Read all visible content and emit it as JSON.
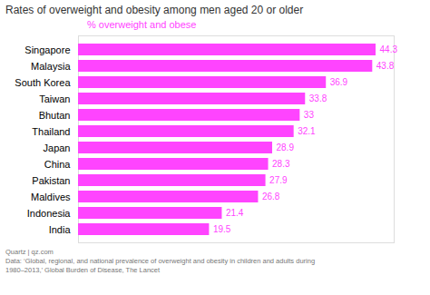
{
  "chart_data": {
    "type": "bar",
    "orientation": "horizontal",
    "title": "Rates of overweight and obesity among men aged 20 or older",
    "subtitle": "% overweight and obese",
    "categories": [
      "India",
      "Indonesia",
      "Maldives",
      "Pakistan",
      "China",
      "Japan",
      "Thailand",
      "Bhutan",
      "Taiwan",
      "South Korea",
      "Malaysia",
      "Singapore"
    ],
    "values": [
      19.5,
      21.4,
      26.8,
      27.9,
      28.3,
      28.9,
      32.1,
      33.0,
      33.8,
      36.9,
      43.8,
      44.3
    ],
    "value_labels": [
      "19.5",
      "21.4",
      "26.8",
      "27.9",
      "28.3",
      "28.9",
      "32.1",
      "33",
      "33.8",
      "36.9",
      "43.8",
      "44.3"
    ],
    "color": "#ff44ff",
    "xlim": [
      0,
      47
    ],
    "data_labels": true,
    "tick_labels": "y",
    "grid": false,
    "annotations": [
      "Quartz | qz.com",
      "Data: ‘Global, regional, and national prevalence of overweight and obesity in children and adults during",
      "1980–2013,’ Global Burden of Disease, The Lancet"
    ]
  }
}
